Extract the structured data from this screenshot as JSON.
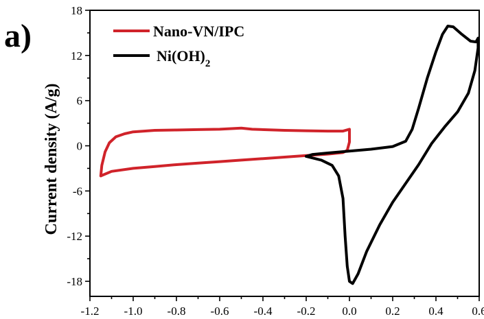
{
  "panel_label": "a)",
  "chart_data": {
    "type": "line",
    "xlabel": "",
    "ylabel": "Current density (A/g)",
    "xlim": [
      -1.2,
      0.6
    ],
    "ylim": [
      -20,
      18
    ],
    "x_ticks": [
      "-1.2",
      "-1.0",
      "-0.8",
      "-0.6",
      "-0.4",
      "-0.2",
      "0.0",
      "0.2",
      "0.4",
      "0.6"
    ],
    "y_ticks": [
      "-18",
      "-12",
      "-6",
      "0",
      "6",
      "12",
      "18"
    ],
    "legend_position": "top-left",
    "series": [
      {
        "name": "Nano-VN/IPC",
        "legend_text": "Nano-VN/IPC",
        "color": "#d0232a",
        "points": [
          [
            -1.15,
            -4.0
          ],
          [
            -1.145,
            -2.6
          ],
          [
            -1.13,
            -0.8
          ],
          [
            -1.11,
            0.4
          ],
          [
            -1.08,
            1.2
          ],
          [
            -1.04,
            1.6
          ],
          [
            -1.0,
            1.85
          ],
          [
            -0.9,
            2.05
          ],
          [
            -0.8,
            2.1
          ],
          [
            -0.7,
            2.15
          ],
          [
            -0.6,
            2.2
          ],
          [
            -0.5,
            2.35
          ],
          [
            -0.45,
            2.2
          ],
          [
            -0.3,
            2.05
          ],
          [
            -0.2,
            2.0
          ],
          [
            -0.1,
            1.95
          ],
          [
            -0.03,
            1.95
          ],
          [
            0.0,
            2.2
          ],
          [
            0.0,
            0.5
          ],
          [
            -0.01,
            -0.6
          ],
          [
            -0.03,
            -0.9
          ],
          [
            -0.1,
            -1.1
          ],
          [
            -0.2,
            -1.3
          ],
          [
            -0.3,
            -1.5
          ],
          [
            -0.4,
            -1.7
          ],
          [
            -0.5,
            -1.9
          ],
          [
            -0.6,
            -2.1
          ],
          [
            -0.7,
            -2.3
          ],
          [
            -0.8,
            -2.5
          ],
          [
            -0.9,
            -2.75
          ],
          [
            -1.0,
            -3.0
          ],
          [
            -1.1,
            -3.4
          ],
          [
            -1.15,
            -4.0
          ]
        ]
      },
      {
        "name": "Ni(OH)2",
        "legend_text": "Ni(OH)",
        "legend_subscript": "2",
        "color": "#000000",
        "points": [
          [
            -0.2,
            -1.4
          ],
          [
            -0.17,
            -1.15
          ],
          [
            -0.1,
            -0.95
          ],
          [
            0.0,
            -0.7
          ],
          [
            0.1,
            -0.45
          ],
          [
            0.2,
            -0.1
          ],
          [
            0.26,
            0.6
          ],
          [
            0.29,
            2.2
          ],
          [
            0.32,
            5.0
          ],
          [
            0.36,
            9.0
          ],
          [
            0.4,
            12.5
          ],
          [
            0.43,
            14.8
          ],
          [
            0.455,
            15.9
          ],
          [
            0.48,
            15.8
          ],
          [
            0.52,
            14.8
          ],
          [
            0.56,
            13.9
          ],
          [
            0.585,
            13.8
          ],
          [
            0.595,
            14.3
          ],
          [
            0.595,
            13.0
          ],
          [
            0.58,
            10.0
          ],
          [
            0.55,
            7.0
          ],
          [
            0.5,
            4.5
          ],
          [
            0.44,
            2.5
          ],
          [
            0.38,
            0.3
          ],
          [
            0.32,
            -2.5
          ],
          [
            0.26,
            -5.0
          ],
          [
            0.2,
            -7.5
          ],
          [
            0.14,
            -10.5
          ],
          [
            0.08,
            -14.0
          ],
          [
            0.04,
            -17.0
          ],
          [
            0.015,
            -18.3
          ],
          [
            0.0,
            -18.0
          ],
          [
            -0.01,
            -16.0
          ],
          [
            -0.02,
            -12.0
          ],
          [
            -0.03,
            -7.0
          ],
          [
            -0.05,
            -4.0
          ],
          [
            -0.08,
            -2.6
          ],
          [
            -0.13,
            -1.9
          ],
          [
            -0.2,
            -1.4
          ]
        ]
      }
    ]
  }
}
